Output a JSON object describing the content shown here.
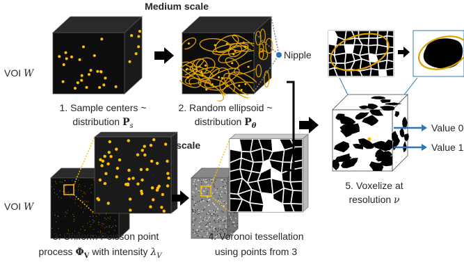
{
  "headings": {
    "medium_scale": "Medium scale",
    "small_scale": "Small scale"
  },
  "voi_top": {
    "text": "VOI ",
    "symbol": "W"
  },
  "voi_bottom": {
    "text": "VOI ",
    "symbol": "W"
  },
  "nipple_label": "Nipple",
  "value_0_label": "Value 0",
  "value_1_label": "Value 1",
  "captions": {
    "step1_line1": "1. Sample centers ~",
    "step1_line2_text": "distribution ",
    "step1_line2_symbol": "P",
    "step1_line2_sub": "s",
    "step2_line1": "2. Random ellipsoid ~",
    "step2_line2_text": "distribution ",
    "step2_line2_symbol": "P",
    "step2_line2_sub": "θ",
    "step3_line1": "3. Uniform Poisson point",
    "step3_line2_a": "process ",
    "step3_line2_symbol": "Φ",
    "step3_line2_sub": "V",
    "step3_line2_b": " with intensity ",
    "step3_line2_lambda": "λ",
    "step3_line2_lambda_sub": "V",
    "step4_line1": "4. Voronoi tessellation",
    "step4_line2": "using points from 3",
    "step5_line1": "5. Voxelize at",
    "step5_line2_text": "resolution ",
    "step5_line2_symbol": "ν"
  },
  "colors": {
    "dot": "#ffc000",
    "ellipse": "#e0a100",
    "arrow_blue": "#2e75b6",
    "cube_front": "#0d0d0d",
    "cube_top": "#2a2a2a",
    "cube_side": "#1a1a1a"
  }
}
